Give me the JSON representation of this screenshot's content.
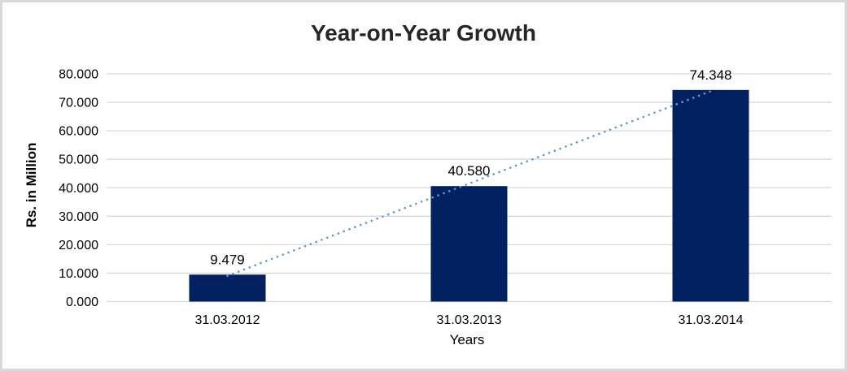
{
  "chart_data": {
    "type": "bar",
    "title": "Year-on-Year Growth",
    "xlabel": "Years",
    "ylabel": "Rs. in Million",
    "categories": [
      "31.03.2012",
      "31.03.2013",
      "31.03.2014"
    ],
    "values": [
      9.479,
      40.58,
      74.348
    ],
    "value_labels": [
      "9.479",
      "40.580",
      "74.348"
    ],
    "y_ticks": [
      {
        "v": 0,
        "label": "0.000"
      },
      {
        "v": 10,
        "label": "10.000"
      },
      {
        "v": 20,
        "label": "20.000"
      },
      {
        "v": 30,
        "label": "30.000"
      },
      {
        "v": 40,
        "label": "40.000"
      },
      {
        "v": 50,
        "label": "50.000"
      },
      {
        "v": 60,
        "label": "60.000"
      },
      {
        "v": 70,
        "label": "70.000"
      },
      {
        "v": 80,
        "label": "80.000"
      }
    ],
    "ylim": [
      0,
      80
    ],
    "grid": true,
    "legend": "none",
    "trendline": {
      "fit": "linear",
      "style": "dotted"
    },
    "colors": {
      "bar": "#002060",
      "trendline": "#5B9BD5",
      "gridline": "#D9D9D9",
      "text": "#000000",
      "title_text": "#262626"
    }
  }
}
